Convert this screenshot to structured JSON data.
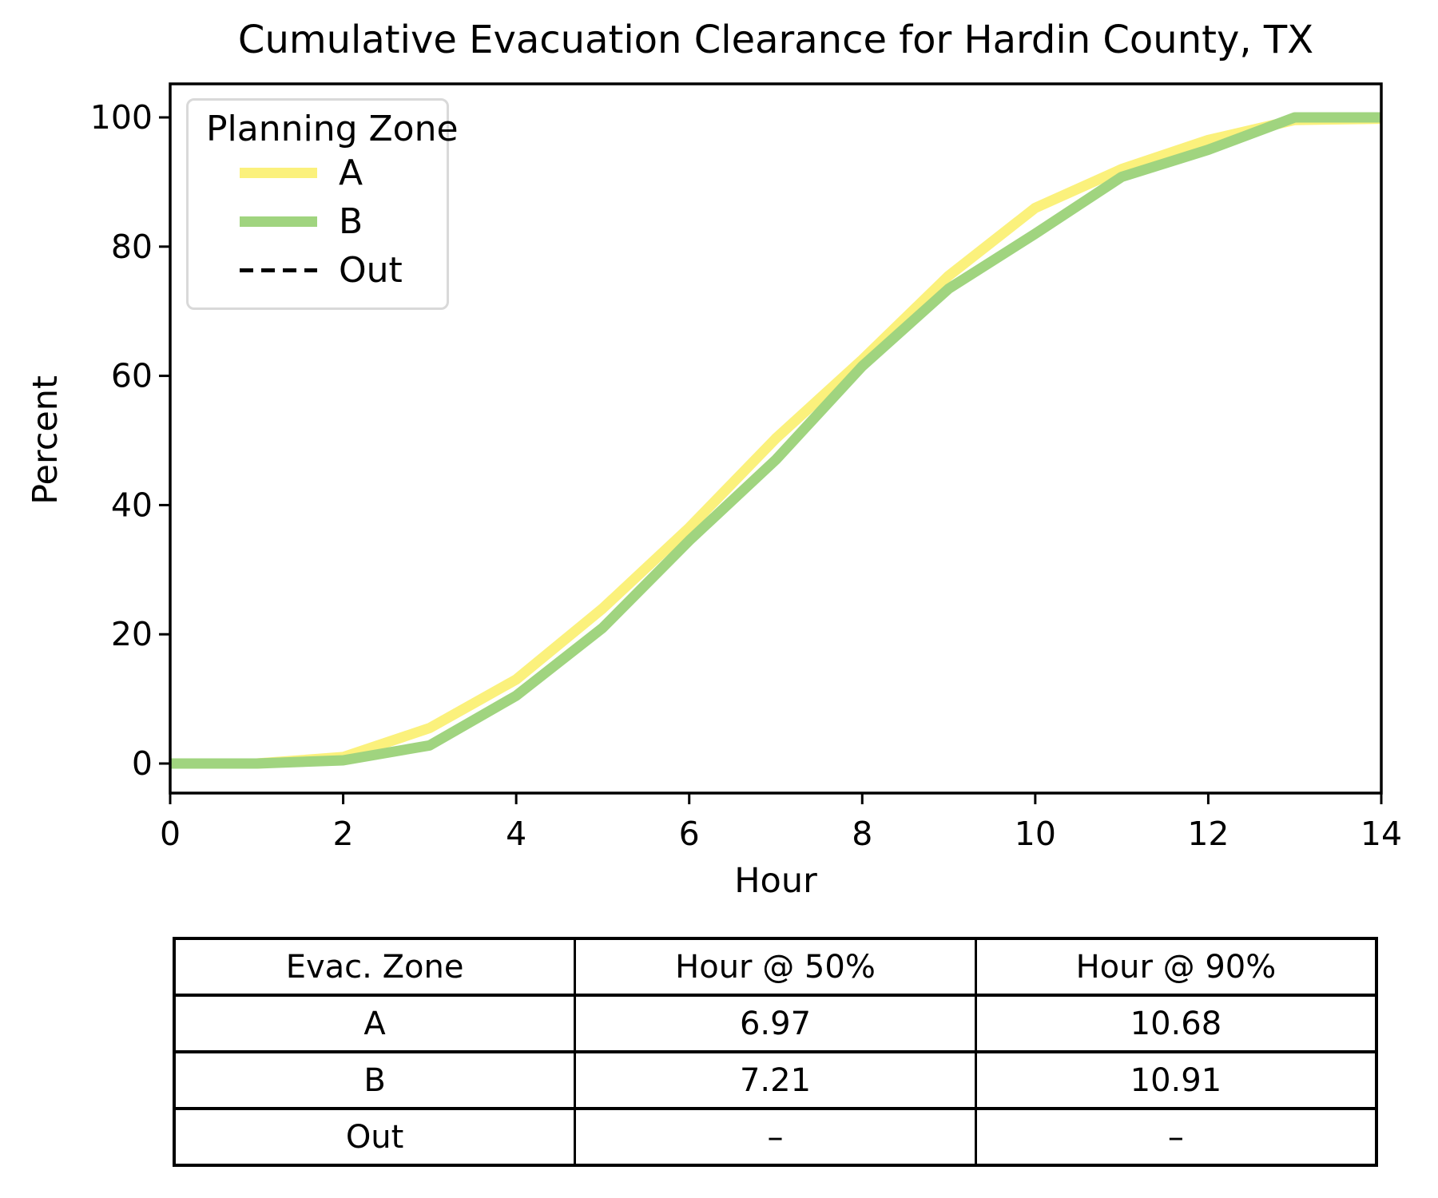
{
  "figure_title": "Cumulative Evacuation Clearance for Hardin County, TX",
  "chart_data": {
    "type": "line",
    "title": "Cumulative Evacuation Clearance for Hardin County, TX",
    "xlabel": "Hour",
    "ylabel": "Percent",
    "xlim": [
      0,
      14
    ],
    "ylim": [
      0,
      100
    ],
    "x_ticks": [
      0,
      2,
      4,
      6,
      8,
      10,
      12,
      14
    ],
    "y_ticks": [
      0,
      20,
      40,
      60,
      80,
      100
    ],
    "grid": false,
    "legend_title": "Planning Zone",
    "legend_position": "upper left",
    "x": [
      0,
      1,
      2,
      3,
      4,
      5,
      6,
      7,
      8,
      9,
      10,
      11,
      12,
      13,
      14
    ],
    "series": [
      {
        "name": "A",
        "color": "#fbf17c",
        "style": "solid",
        "values": [
          0,
          0,
          1,
          5.5,
          13,
          24,
          36.5,
          50.3,
          62.5,
          75.5,
          86,
          92,
          96.5,
          99.6,
          99.8
        ]
      },
      {
        "name": "B",
        "color": "#a0d47f",
        "style": "solid",
        "values": [
          0,
          0,
          0.5,
          2.8,
          10.5,
          21,
          34.5,
          47,
          61.5,
          73.5,
          82,
          90.8,
          95,
          100,
          100
        ]
      },
      {
        "name": "Out",
        "color": "#000000",
        "style": "dashed",
        "values": []
      }
    ]
  },
  "table": {
    "columns": [
      "Evac. Zone",
      "Hour @ 50%",
      "Hour @ 90%"
    ],
    "rows": [
      [
        "A",
        "6.97",
        "10.68"
      ],
      [
        "B",
        "7.21",
        "10.91"
      ],
      [
        "Out",
        "–",
        "–"
      ]
    ]
  },
  "colors": {
    "axis": "#000000",
    "legend_border": "#d9d9d9",
    "background": "#ffffff"
  }
}
